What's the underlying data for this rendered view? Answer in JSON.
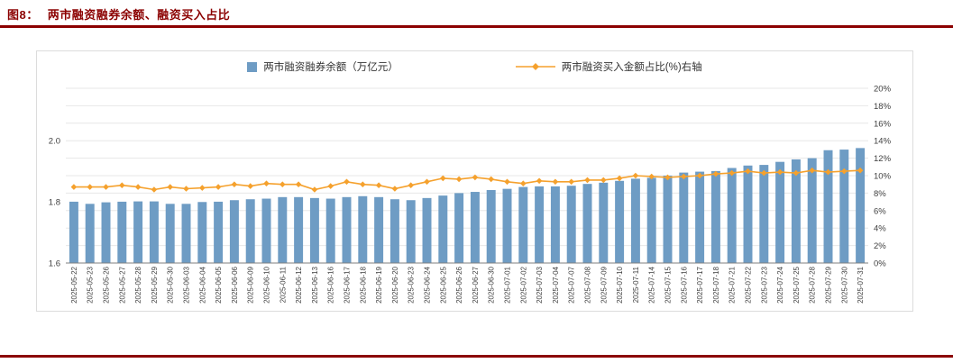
{
  "header": {
    "title_prefix": "图8：",
    "title": "两市融资融券余额、融资买入占比"
  },
  "colors": {
    "accent": "#8B0000",
    "bar": "#6E9CC4",
    "line": "#F5A12D",
    "grid": "#E7E7E7",
    "axis": "#7F7F7F",
    "text": "#404040",
    "border": "#DCDCDC"
  },
  "chart_data": {
    "type": "bar",
    "subtype": "bar+line dual axis",
    "title": "两市融资融券余额、融资买入占比",
    "legend_position": "top",
    "grid": true,
    "categories": [
      "2025-05-22",
      "2025-05-23",
      "2025-05-26",
      "2025-05-27",
      "2025-05-28",
      "2025-05-29",
      "2025-05-30",
      "2025-06-03",
      "2025-06-04",
      "2025-06-05",
      "2025-06-06",
      "2025-06-09",
      "2025-06-10",
      "2025-06-11",
      "2025-06-12",
      "2025-06-13",
      "2025-06-16",
      "2025-06-17",
      "2025-06-18",
      "2025-06-19",
      "2025-06-20",
      "2025-06-23",
      "2025-06-24",
      "2025-06-25",
      "2025-06-26",
      "2025-06-27",
      "2025-06-30",
      "2025-07-01",
      "2025-07-02",
      "2025-07-03",
      "2025-07-04",
      "2025-07-07",
      "2025-07-08",
      "2025-07-09",
      "2025-07-10",
      "2025-07-11",
      "2025-07-14",
      "2025-07-15",
      "2025-07-16",
      "2025-07-17",
      "2025-07-18",
      "2025-07-21",
      "2025-07-22",
      "2025-07-23",
      "2025-07-24",
      "2025-07-25",
      "2025-07-28",
      "2025-07-29",
      "2025-07-30",
      "2025-07-31"
    ],
    "series": [
      {
        "name": "两市融资融券余额（万亿元）",
        "type": "bar",
        "axis": "left",
        "color": "#6E9CC4",
        "values": [
          1.8,
          1.793,
          1.798,
          1.8,
          1.801,
          1.801,
          1.793,
          1.793,
          1.799,
          1.8,
          1.805,
          1.808,
          1.81,
          1.815,
          1.815,
          1.812,
          1.81,
          1.815,
          1.818,
          1.815,
          1.808,
          1.805,
          1.812,
          1.82,
          1.828,
          1.832,
          1.838,
          1.842,
          1.848,
          1.85,
          1.85,
          1.852,
          1.858,
          1.862,
          1.868,
          1.875,
          1.878,
          1.885,
          1.895,
          1.898,
          1.9,
          1.91,
          1.918,
          1.92,
          1.93,
          1.938,
          1.942,
          1.968,
          1.97,
          1.975
        ]
      },
      {
        "name": "两市融资买入金额占比(%)右轴",
        "type": "line",
        "axis": "right",
        "color": "#F5A12D",
        "values": [
          8.7,
          8.7,
          8.7,
          8.9,
          8.7,
          8.4,
          8.7,
          8.5,
          8.6,
          8.7,
          9.0,
          8.8,
          9.1,
          9.0,
          9.0,
          8.4,
          8.8,
          9.3,
          9.0,
          8.9,
          8.5,
          8.9,
          9.3,
          9.7,
          9.6,
          9.8,
          9.6,
          9.3,
          9.1,
          9.4,
          9.3,
          9.3,
          9.5,
          9.5,
          9.7,
          10.0,
          9.9,
          9.8,
          9.9,
          10.0,
          10.2,
          10.3,
          10.5,
          10.3,
          10.4,
          10.3,
          10.6,
          10.4,
          10.5,
          10.6
        ]
      }
    ],
    "left_axis": {
      "min": 1.6,
      "max": 2.17,
      "ticks": [
        2.0,
        1.8,
        1.6
      ]
    },
    "right_axis": {
      "min": 0,
      "max": 20,
      "tick_step": 2,
      "unit": "%"
    }
  }
}
